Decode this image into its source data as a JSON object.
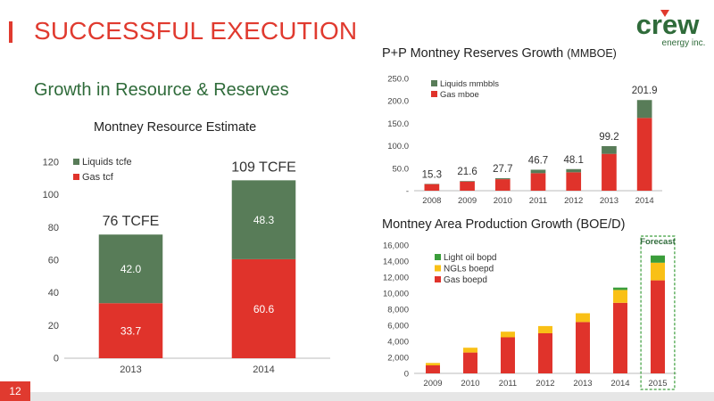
{
  "slide": {
    "title": "SUCCESSFUL EXECUTION",
    "subtitle": "Growth in Resource & Reserves",
    "page_number": "12",
    "logo_text": "crew",
    "logo_subtext": "energy inc."
  },
  "colors": {
    "accent_red": "#e03a2f",
    "dark_green": "#587c58",
    "bright_green": "#3a9d3a",
    "yellow": "#f9c016",
    "gas_red": "#e0332b"
  },
  "chart_data": [
    {
      "id": "resource",
      "type": "bar",
      "stacked": true,
      "title": "Montney Resource Estimate",
      "categories": [
        "2013",
        "2014"
      ],
      "series": [
        {
          "name": "Gas tcf",
          "values": [
            33.7,
            60.6
          ],
          "color": "#e0332b"
        },
        {
          "name": "Liquids tcfe",
          "values": [
            42.0,
            48.3
          ],
          "color": "#587c58"
        }
      ],
      "totals": [
        "76 TCFE",
        "109 TCFE"
      ],
      "ylim": [
        0,
        120
      ],
      "yticks": [
        "0",
        "20",
        "40",
        "60",
        "80",
        "100",
        "120"
      ],
      "legend": "top-left"
    },
    {
      "id": "reserves",
      "type": "bar",
      "stacked": true,
      "title": "P+P Montney Reserves Growth",
      "title_unit": "(MMBOE)",
      "categories": [
        "2008",
        "2009",
        "2010",
        "2011",
        "2012",
        "2013",
        "2014"
      ],
      "series": [
        {
          "name": "Gas mboe",
          "values": [
            14.6,
            20.4,
            25.6,
            39.0,
            41.0,
            82.0,
            162.0
          ],
          "color": "#e0332b"
        },
        {
          "name": "Liquids mmbbls",
          "values": [
            0.7,
            1.2,
            2.1,
            7.7,
            7.1,
            17.2,
            39.9
          ],
          "color": "#587c58"
        }
      ],
      "totals": [
        "15.3",
        "21.6",
        "27.7",
        "46.7",
        "48.1",
        "99.2",
        "201.9"
      ],
      "ylim": [
        0,
        250
      ],
      "yticks": [
        "-",
        "50.0",
        "100.0",
        "150.0",
        "200.0",
        "250.0"
      ],
      "legend": "top-left"
    },
    {
      "id": "production",
      "type": "bar",
      "stacked": true,
      "title": "Montney Area Production Growth (BOE/D)",
      "categories": [
        "2009",
        "2010",
        "2011",
        "2012",
        "2013",
        "2014",
        "2015"
      ],
      "series": [
        {
          "name": "Gas boepd",
          "values": [
            1000,
            2600,
            4500,
            5000,
            6400,
            8800,
            11600
          ],
          "color": "#e0332b"
        },
        {
          "name": "NGLs boepd",
          "values": [
            300,
            600,
            700,
            900,
            1100,
            1600,
            2200
          ],
          "color": "#f9c016"
        },
        {
          "name": "Light oil bopd",
          "values": [
            0,
            0,
            0,
            0,
            0,
            300,
            900
          ],
          "color": "#3a9d3a"
        }
      ],
      "forecast_label": "Forecast",
      "forecast_categories": [
        "2015"
      ],
      "ylim": [
        0,
        16000
      ],
      "yticks": [
        "0",
        "2,000",
        "4,000",
        "6,000",
        "8,000",
        "10,000",
        "12,000",
        "14,000",
        "16,000"
      ],
      "legend": "top-left"
    }
  ]
}
